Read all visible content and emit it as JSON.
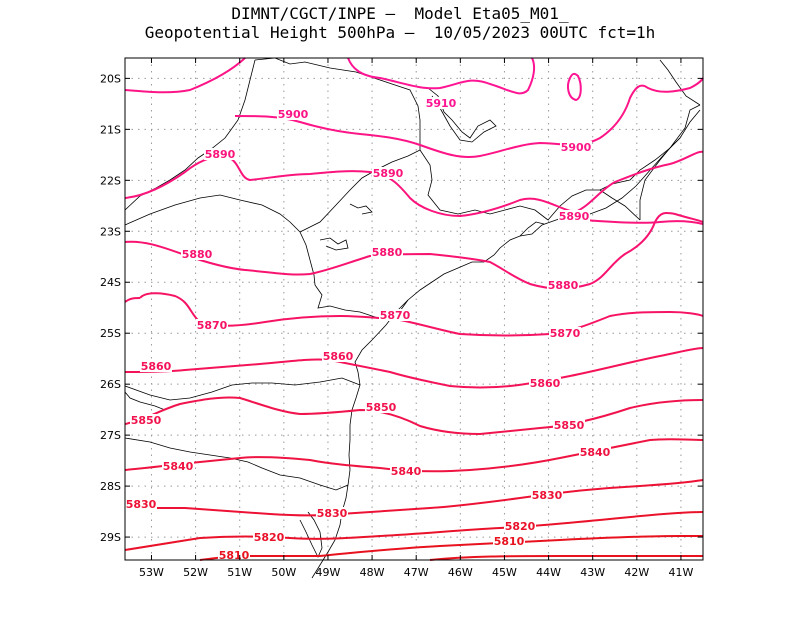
{
  "header": {
    "line1": "DIMNT/CGCT/INPE –  Model Eta05_M01_",
    "line2": "Geopotential Height 500hPa –  10/05/2023 00UTC fct=1h"
  },
  "chart_data": {
    "type": "contour-map",
    "variable": "Geopotential Height 500hPa",
    "lon_range": [
      -53.6,
      -40.5
    ],
    "lat_range": [
      -29.45,
      -19.6
    ],
    "grid": true,
    "lon_ticks": [
      "53W",
      "52W",
      "51W",
      "50W",
      "49W",
      "48W",
      "47W",
      "46W",
      "45W",
      "44W",
      "43W",
      "42W",
      "41W"
    ],
    "lat_ticks": [
      "20S",
      "21S",
      "22S",
      "23S",
      "24S",
      "25S",
      "26S",
      "27S",
      "28S",
      "29S"
    ],
    "contour_values": [
      5810,
      5820,
      5830,
      5840,
      5850,
      5860,
      5870,
      5880,
      5890,
      5900,
      5910
    ],
    "contour_labels": [
      {
        "text": "5910"
      },
      {
        "text": "5900"
      },
      {
        "text": "5900"
      },
      {
        "text": "5890"
      },
      {
        "text": "5890"
      },
      {
        "text": "5890"
      },
      {
        "text": "5880"
      },
      {
        "text": "5880"
      },
      {
        "text": "5880"
      },
      {
        "text": "5870"
      },
      {
        "text": "5870"
      },
      {
        "text": "5870"
      },
      {
        "text": "5860"
      },
      {
        "text": "5860"
      },
      {
        "text": "5860"
      },
      {
        "text": "5850"
      },
      {
        "text": "5850"
      },
      {
        "text": "5850"
      },
      {
        "text": "5840"
      },
      {
        "text": "5840"
      },
      {
        "text": "5840"
      },
      {
        "text": "5830"
      },
      {
        "text": "5830"
      },
      {
        "text": "5830"
      },
      {
        "text": "5820"
      },
      {
        "text": "5820"
      },
      {
        "text": "5810"
      },
      {
        "text": "5810"
      }
    ],
    "colors": {
      "high": "#ff1493",
      "low": "#e8121e",
      "boundary": "#000000",
      "grid": "#9a9a9a"
    }
  }
}
